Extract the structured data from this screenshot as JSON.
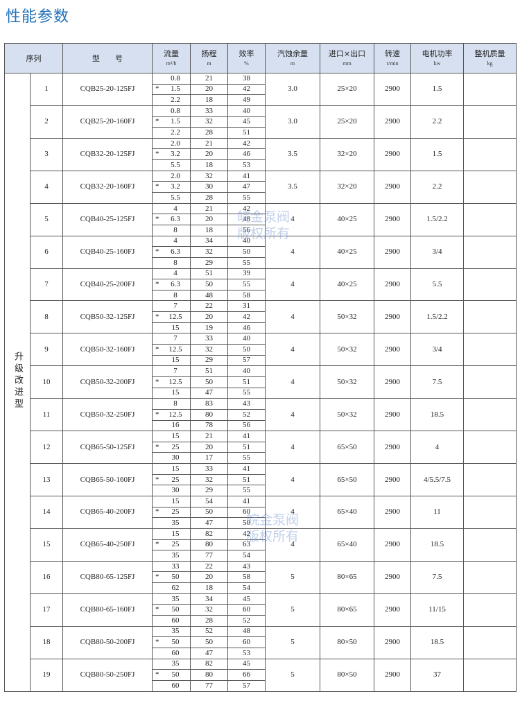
{
  "title": "性能参数",
  "watermark": [
    "皖金泵阀",
    "版权所有"
  ],
  "headers": {
    "seq": "序列",
    "model": "型　　号",
    "flow": {
      "label": "流量",
      "unit": "m³/h"
    },
    "head": {
      "label": "扬程",
      "unit": "m"
    },
    "eff": {
      "label": "效率",
      "unit": "%"
    },
    "npsh": {
      "label": "汽蚀余量",
      "unit": "m"
    },
    "port": {
      "label": "进口×出口",
      "unit": "mm"
    },
    "speed": {
      "label": "转速",
      "unit": "r/min"
    },
    "power": {
      "label": "电机功率",
      "unit": "kw"
    },
    "weight": {
      "label": "整机质量",
      "unit": "kg"
    }
  },
  "category": "升级改进型",
  "star": "*",
  "rows": [
    {
      "no": "1",
      "model": "CQB25-20-125FJ",
      "points": [
        [
          "0.8",
          "21",
          "38"
        ],
        [
          "1.5",
          "20",
          "42"
        ],
        [
          "2.2",
          "18",
          "49"
        ]
      ],
      "npsh": "3.0",
      "port": "25×20",
      "speed": "2900",
      "power": "1.5",
      "weight": ""
    },
    {
      "no": "2",
      "model": "CQB25-20-160FJ",
      "points": [
        [
          "0.8",
          "33",
          "40"
        ],
        [
          "1.5",
          "32",
          "45"
        ],
        [
          "2.2",
          "28",
          "51"
        ]
      ],
      "npsh": "3.0",
      "port": "25×20",
      "speed": "2900",
      "power": "2.2",
      "weight": ""
    },
    {
      "no": "3",
      "model": "CQB32-20-125FJ",
      "points": [
        [
          "2.0",
          "21",
          "42"
        ],
        [
          "3.2",
          "20",
          "46"
        ],
        [
          "5.5",
          "18",
          "53"
        ]
      ],
      "npsh": "3.5",
      "port": "32×20",
      "speed": "2900",
      "power": "1.5",
      "weight": ""
    },
    {
      "no": "4",
      "model": "CQB32-20-160FJ",
      "points": [
        [
          "2.0",
          "32",
          "41"
        ],
        [
          "3.2",
          "30",
          "47"
        ],
        [
          "5.5",
          "28",
          "55"
        ]
      ],
      "npsh": "3.5",
      "port": "32×20",
      "speed": "2900",
      "power": "2.2",
      "weight": ""
    },
    {
      "no": "5",
      "model": "CQB40-25-125FJ",
      "points": [
        [
          "4",
          "21",
          "42"
        ],
        [
          "6.3",
          "20",
          "48"
        ],
        [
          "8",
          "18",
          "56"
        ]
      ],
      "npsh": "4",
      "port": "40×25",
      "speed": "2900",
      "power": "1.5/2.2",
      "weight": ""
    },
    {
      "no": "6",
      "model": "CQB40-25-160FJ",
      "points": [
        [
          "4",
          "34",
          "40"
        ],
        [
          "6.3",
          "32",
          "50"
        ],
        [
          "8",
          "29",
          "55"
        ]
      ],
      "npsh": "4",
      "port": "40×25",
      "speed": "2900",
      "power": "3/4",
      "weight": ""
    },
    {
      "no": "7",
      "model": "CQB40-25-200FJ",
      "points": [
        [
          "4",
          "51",
          "39"
        ],
        [
          "6.3",
          "50",
          "55"
        ],
        [
          "8",
          "48",
          "58"
        ]
      ],
      "npsh": "4",
      "port": "40×25",
      "speed": "2900",
      "power": "5.5",
      "weight": ""
    },
    {
      "no": "8",
      "model": "CQB50-32-125FJ",
      "points": [
        [
          "7",
          "22",
          "31"
        ],
        [
          "12.5",
          "20",
          "42"
        ],
        [
          "15",
          "19",
          "46"
        ]
      ],
      "npsh": "4",
      "port": "50×32",
      "speed": "2900",
      "power": "1.5/2.2",
      "weight": ""
    },
    {
      "no": "9",
      "model": "CQB50-32-160FJ",
      "points": [
        [
          "7",
          "33",
          "40"
        ],
        [
          "12.5",
          "32",
          "50"
        ],
        [
          "15",
          "29",
          "57"
        ]
      ],
      "npsh": "4",
      "port": "50×32",
      "speed": "2900",
      "power": "3/4",
      "weight": ""
    },
    {
      "no": "10",
      "model": "CQB50-32-200FJ",
      "points": [
        [
          "7",
          "51",
          "40"
        ],
        [
          "12.5",
          "50",
          "51"
        ],
        [
          "15",
          "47",
          "55"
        ]
      ],
      "npsh": "4",
      "port": "50×32",
      "speed": "2900",
      "power": "7.5",
      "weight": ""
    },
    {
      "no": "11",
      "model": "CQB50-32-250FJ",
      "points": [
        [
          "8",
          "83",
          "43"
        ],
        [
          "12.5",
          "80",
          "52"
        ],
        [
          "16",
          "78",
          "56"
        ]
      ],
      "npsh": "4",
      "port": "50×32",
      "speed": "2900",
      "power": "18.5",
      "weight": ""
    },
    {
      "no": "12",
      "model": "CQB65-50-125FJ",
      "points": [
        [
          "15",
          "21",
          "41"
        ],
        [
          "25",
          "20",
          "51"
        ],
        [
          "30",
          "17",
          "55"
        ]
      ],
      "npsh": "4",
      "port": "65×50",
      "speed": "2900",
      "power": "4",
      "weight": ""
    },
    {
      "no": "13",
      "model": "CQB65-50-160FJ",
      "points": [
        [
          "15",
          "33",
          "41"
        ],
        [
          "25",
          "32",
          "51"
        ],
        [
          "30",
          "29",
          "55"
        ]
      ],
      "npsh": "4",
      "port": "65×50",
      "speed": "2900",
      "power": "4/5.5/7.5",
      "weight": ""
    },
    {
      "no": "14",
      "model": "CQB65-40-200FJ",
      "points": [
        [
          "15",
          "54",
          "41"
        ],
        [
          "25",
          "50",
          "60"
        ],
        [
          "35",
          "47",
          "50"
        ]
      ],
      "npsh": "4",
      "port": "65×40",
      "speed": "2900",
      "power": "11",
      "weight": ""
    },
    {
      "no": "15",
      "model": "CQB65-40-250FJ",
      "points": [
        [
          "15",
          "82",
          "42"
        ],
        [
          "25",
          "80",
          "63"
        ],
        [
          "35",
          "77",
          "54"
        ]
      ],
      "npsh": "4",
      "port": "65×40",
      "speed": "2900",
      "power": "18.5",
      "weight": ""
    },
    {
      "no": "16",
      "model": "CQB80-65-125FJ",
      "points": [
        [
          "33",
          "22",
          "43"
        ],
        [
          "50",
          "20",
          "58"
        ],
        [
          "62",
          "18",
          "54"
        ]
      ],
      "npsh": "5",
      "port": "80×65",
      "speed": "2900",
      "power": "7.5",
      "weight": ""
    },
    {
      "no": "17",
      "model": "CQB80-65-160FJ",
      "points": [
        [
          "35",
          "34",
          "45"
        ],
        [
          "50",
          "32",
          "60"
        ],
        [
          "60",
          "28",
          "52"
        ]
      ],
      "npsh": "5",
      "port": "80×65",
      "speed": "2900",
      "power": "11/15",
      "weight": ""
    },
    {
      "no": "18",
      "model": "CQB80-50-200FJ",
      "points": [
        [
          "35",
          "52",
          "48"
        ],
        [
          "50",
          "50",
          "60"
        ],
        [
          "60",
          "47",
          "53"
        ]
      ],
      "npsh": "5",
      "port": "80×50",
      "speed": "2900",
      "power": "18.5",
      "weight": ""
    },
    {
      "no": "19",
      "model": "CQB80-50-250FJ",
      "points": [
        [
          "35",
          "82",
          "45"
        ],
        [
          "50",
          "80",
          "66"
        ],
        [
          "60",
          "77",
          "57"
        ]
      ],
      "npsh": "5",
      "port": "80×50",
      "speed": "2900",
      "power": "37",
      "weight": ""
    }
  ]
}
